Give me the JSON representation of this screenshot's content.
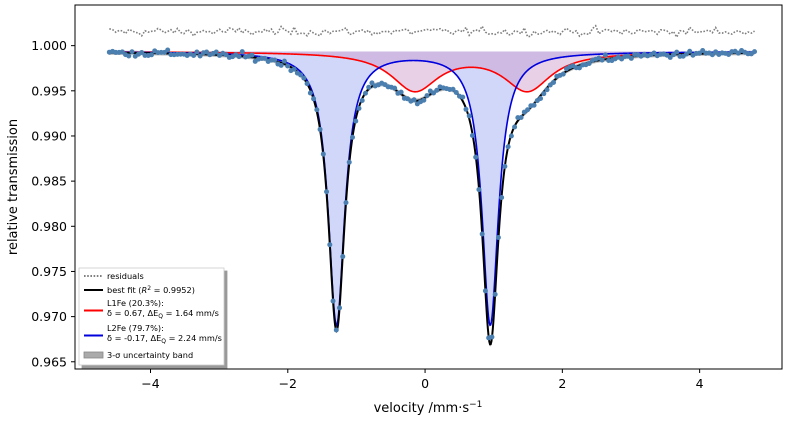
{
  "chart_data": {
    "type": "line",
    "title": "",
    "xlabel": "velocity /mm·s",
    "xlabel_sup": "−1",
    "ylabel": "relative transmission",
    "xlim": [
      -5.1,
      5.2
    ],
    "ylim": [
      0.9642,
      1.0045
    ],
    "xticks": [
      -4,
      -2,
      0,
      2,
      4
    ],
    "xtick_labels": [
      "−4",
      "−2",
      "0",
      "2",
      "4"
    ],
    "yticks": [
      0.965,
      0.97,
      0.975,
      0.98,
      0.985,
      0.99,
      0.995,
      1.0
    ],
    "ytick_labels": [
      "0.965",
      "0.970",
      "0.975",
      "0.980",
      "0.985",
      "0.990",
      "0.995",
      "1.000"
    ],
    "grid": false,
    "legend_position": "bottom-left",
    "baseline": 0.99935,
    "x_range": [
      -4.6,
      4.8
    ],
    "n_points": 200,
    "components": [
      {
        "name": "L1Fe",
        "legend_lines": [
          "L1Fe (20.3%):",
          "δ = 0.67, ΔE",
          "Q",
          " = 1.64 mm/s"
        ],
        "color": "#ff0000",
        "fill": "rgba(204,150,200,0.45)",
        "peaks": [
          {
            "center": -0.15,
            "depth": 0.0042,
            "hwhm": 0.42
          },
          {
            "center": 1.49,
            "depth": 0.0042,
            "hwhm": 0.42
          }
        ]
      },
      {
        "name": "L2Fe",
        "legend_lines": [
          "L2Fe (79.7%):",
          "δ = -0.17, ΔE",
          "Q",
          " = 2.24 mm/s"
        ],
        "color": "#0000dd",
        "fill": "rgba(110,130,235,0.32)",
        "peaks": [
          {
            "center": -1.29,
            "depth": 0.0302,
            "hwhm": 0.145
          },
          {
            "center": 0.95,
            "depth": 0.0302,
            "hwhm": 0.145
          }
        ]
      }
    ],
    "best_fit": {
      "legend_parts": [
        "best fit (",
        "R",
        "2",
        " =  0.9952)"
      ],
      "color": "#000000"
    },
    "residuals": {
      "name": "residuals",
      "color": "#808080",
      "offset": 1.00155,
      "amplitude": 0.0005
    },
    "data_points": {
      "color": "#4a7fb0",
      "noise": 0.0004
    },
    "uncertainty_band": {
      "name": "3-σ uncertainty band",
      "color": "#aaaaaa"
    }
  }
}
